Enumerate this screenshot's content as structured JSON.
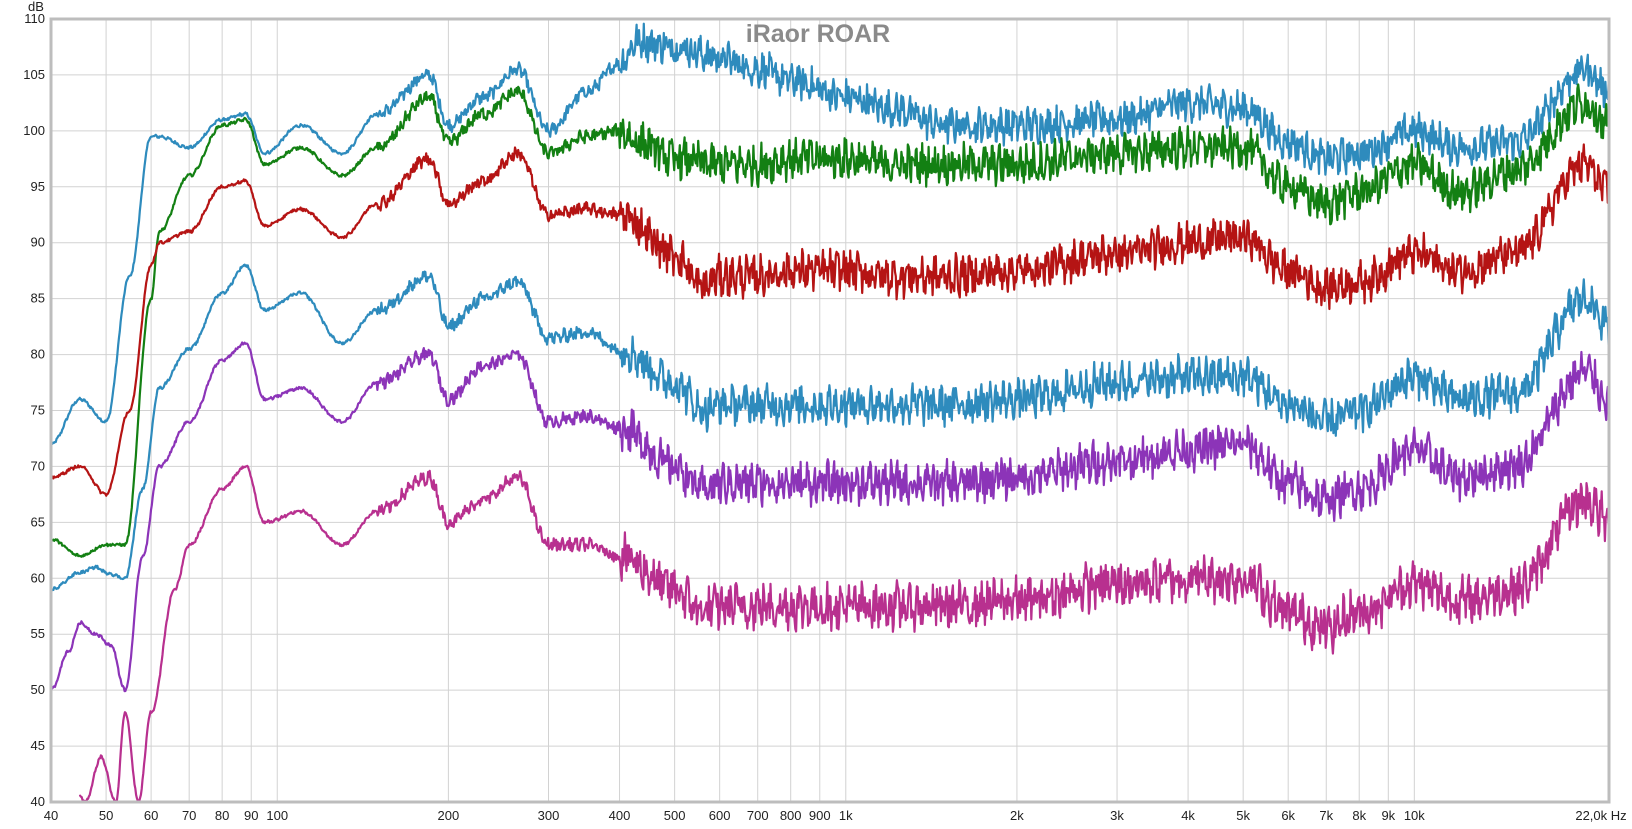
{
  "chart_data": {
    "type": "line",
    "title": "iRaor ROAR",
    "ylabel": "dB",
    "xlabel": "",
    "x_scale": "log",
    "xlim": [
      40,
      22000
    ],
    "ylim": [
      40,
      110
    ],
    "grid": true,
    "x_ticks": [
      {
        "v": 40,
        "label": "40"
      },
      {
        "v": 50,
        "label": "50"
      },
      {
        "v": 60,
        "label": "60"
      },
      {
        "v": 70,
        "label": "70"
      },
      {
        "v": 80,
        "label": "80"
      },
      {
        "v": 90,
        "label": "90"
      },
      {
        "v": 100,
        "label": "100"
      },
      {
        "v": 200,
        "label": "200"
      },
      {
        "v": 300,
        "label": "300"
      },
      {
        "v": 400,
        "label": "400"
      },
      {
        "v": 500,
        "label": "500"
      },
      {
        "v": 600,
        "label": "600"
      },
      {
        "v": 700,
        "label": "700"
      },
      {
        "v": 800,
        "label": "800"
      },
      {
        "v": 900,
        "label": "900"
      },
      {
        "v": 1000,
        "label": "1k"
      },
      {
        "v": 2000,
        "label": "2k"
      },
      {
        "v": 3000,
        "label": "3k"
      },
      {
        "v": 4000,
        "label": "4k"
      },
      {
        "v": 5000,
        "label": "5k"
      },
      {
        "v": 6000,
        "label": "6k"
      },
      {
        "v": 7000,
        "label": "7k"
      },
      {
        "v": 8000,
        "label": "8k"
      },
      {
        "v": 9000,
        "label": "9k"
      },
      {
        "v": 10000,
        "label": "10k"
      },
      {
        "v": 22000,
        "label": "22,0k Hz"
      }
    ],
    "y_ticks": [
      40,
      45,
      50,
      55,
      60,
      65,
      70,
      75,
      80,
      85,
      90,
      95,
      100,
      105,
      110
    ],
    "series": [
      {
        "color": "#2e8bbd",
        "noise": 1.6,
        "x": [
          40,
          45,
          50,
          55,
          60,
          62,
          70,
          80,
          88,
          95,
          110,
          130,
          150,
          185,
          200,
          230,
          265,
          300,
          350,
          400,
          430,
          500,
          600,
          700,
          800,
          1000,
          1200,
          1500,
          2000,
          3000,
          4000,
          5000,
          6000,
          7000,
          8000,
          10000,
          12000,
          15000,
          20000,
          22000
        ],
        "y": [
          72,
          76,
          74,
          87,
          99.5,
          99.5,
          98.5,
          101,
          101.5,
          98,
          100.5,
          98,
          101.5,
          105,
          100.5,
          103,
          105.5,
          100,
          103.5,
          106,
          108,
          107.5,
          106.5,
          105.5,
          104.5,
          103,
          102,
          100.5,
          100.5,
          101,
          102.5,
          102,
          99,
          97.5,
          98,
          100,
          98.5,
          99,
          105.5,
          103.5
        ]
      },
      {
        "color": "#138013",
        "noise": 1.8,
        "x": [
          40,
          45,
          50,
          54,
          60,
          62,
          70,
          80,
          88,
          95,
          110,
          130,
          150,
          185,
          200,
          230,
          265,
          300,
          350,
          400,
          430,
          500,
          600,
          700,
          800,
          1000,
          1200,
          1500,
          2000,
          3000,
          4000,
          5000,
          6000,
          7000,
          8000,
          10000,
          12000,
          15000,
          20000,
          22000
        ],
        "y": [
          63.5,
          62,
          63,
          63,
          85,
          91,
          96,
          100.5,
          101,
          97,
          98.5,
          96,
          98.5,
          103,
          99,
          101.5,
          103.5,
          98,
          99.5,
          100,
          99,
          97.5,
          97,
          97,
          97.5,
          97.5,
          97,
          97,
          97,
          98,
          98.5,
          98.5,
          95,
          93.5,
          94.5,
          97,
          94.5,
          96.5,
          102.5,
          100.5
        ]
      },
      {
        "color": "#b51414",
        "noise": 1.8,
        "x": [
          40,
          45,
          50,
          55,
          60,
          62,
          70,
          80,
          88,
          95,
          110,
          130,
          150,
          185,
          200,
          230,
          265,
          300,
          350,
          400,
          500,
          560,
          600,
          700,
          800,
          1000,
          1200,
          1500,
          2000,
          3000,
          4000,
          5000,
          6000,
          7000,
          8000,
          10000,
          12000,
          15000,
          20000,
          22000
        ],
        "y": [
          69,
          70,
          67.5,
          75,
          88,
          90,
          91,
          95,
          95.5,
          91.5,
          93,
          90.5,
          93.5,
          97.5,
          93.5,
          95.5,
          98,
          92.5,
          93,
          92.5,
          89,
          86,
          87,
          87,
          87.5,
          87.5,
          87,
          87,
          87.5,
          89,
          90,
          90.5,
          87.5,
          86,
          86.5,
          89,
          87.5,
          89,
          97,
          94.5
        ]
      },
      {
        "color": "#2e8bbd",
        "noise": 1.8,
        "x": [
          40,
          45,
          48,
          50,
          54,
          58,
          62,
          70,
          80,
          88,
          95,
          110,
          130,
          150,
          185,
          200,
          230,
          265,
          300,
          350,
          400,
          500,
          560,
          600,
          700,
          800,
          1000,
          1200,
          1500,
          2000,
          3000,
          4000,
          5000,
          6000,
          7000,
          8000,
          10000,
          12000,
          15000,
          20000,
          22000
        ],
        "y": [
          59,
          60.5,
          61,
          60.5,
          60,
          68,
          77,
          80.5,
          85.5,
          88,
          84,
          85.5,
          81,
          84,
          87,
          82.5,
          85,
          86.5,
          81.5,
          82,
          80.5,
          77.5,
          75,
          75.5,
          75.5,
          75.5,
          75.5,
          75.5,
          75.5,
          76,
          77.5,
          78,
          78,
          75.5,
          74,
          75,
          78,
          76,
          76.5,
          85,
          82.5
        ]
      },
      {
        "color": "#8c34b8",
        "noise": 1.9,
        "x": [
          40,
          43,
          45,
          48,
          51,
          54,
          58,
          62,
          70,
          80,
          88,
          95,
          110,
          130,
          150,
          185,
          200,
          230,
          265,
          300,
          350,
          400,
          500,
          560,
          600,
          700,
          800,
          1000,
          1200,
          1500,
          2000,
          3000,
          4000,
          5000,
          6000,
          7000,
          8000,
          10000,
          12000,
          15000,
          20000,
          22000
        ],
        "y": [
          50,
          53.5,
          56,
          55,
          54,
          50,
          62,
          70,
          74,
          79.5,
          81,
          76,
          77,
          74,
          77.5,
          80,
          76,
          79,
          80,
          74,
          74.5,
          73.5,
          70,
          68,
          68.5,
          68.5,
          68.5,
          68.5,
          68.5,
          68.5,
          69,
          70.5,
          71.5,
          72,
          68.5,
          67,
          68,
          71.5,
          69,
          70,
          78.5,
          76
        ]
      },
      {
        "color": "#b8308f",
        "noise": 2.1,
        "x": [
          45,
          46,
          49,
          52,
          54,
          57,
          60,
          66,
          70,
          80,
          88,
          95,
          110,
          130,
          150,
          185,
          200,
          230,
          265,
          300,
          350,
          400,
          500,
          560,
          600,
          700,
          800,
          1000,
          1200,
          1500,
          2000,
          3000,
          4000,
          5000,
          6000,
          7000,
          8000,
          10000,
          12000,
          15000,
          20000,
          22000
        ],
        "y": [
          40.5,
          40,
          44,
          40,
          48,
          40,
          48,
          59,
          63,
          68,
          70,
          65,
          66,
          63,
          66,
          69,
          65,
          67,
          69,
          63,
          63,
          62,
          59,
          57,
          57.5,
          57.5,
          57.5,
          57.5,
          57.5,
          57.5,
          58,
          59.5,
          60,
          60,
          57,
          55.5,
          57,
          59.5,
          58,
          59,
          67,
          65
        ]
      }
    ]
  }
}
